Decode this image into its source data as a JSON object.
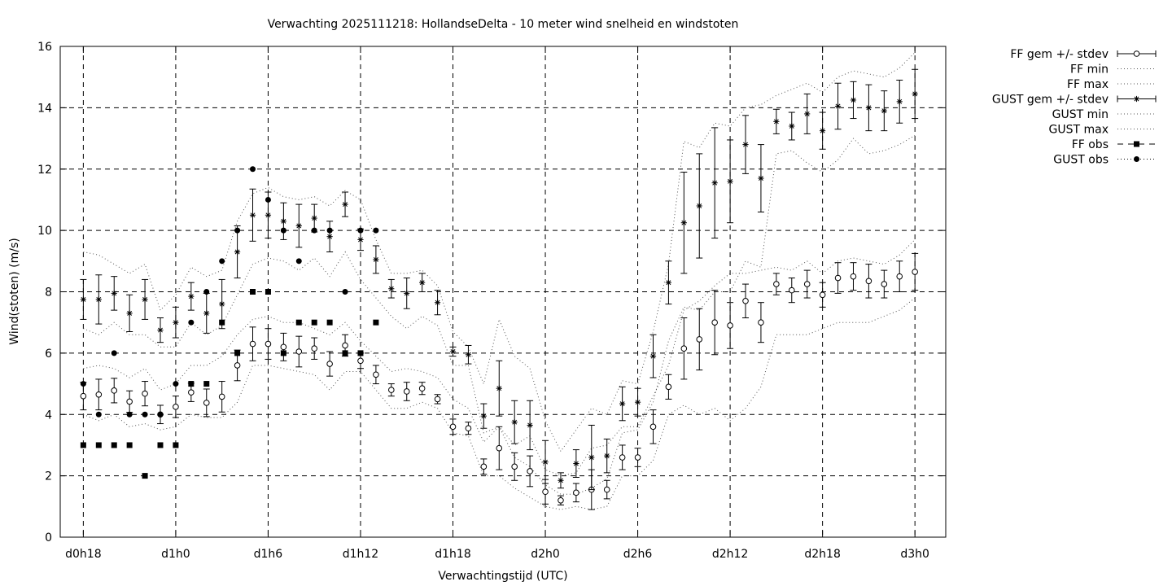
{
  "chart_data": {
    "type": "line",
    "title": "Verwachting 2025111218: HollandseDelta - 10 meter wind snelheid en windstoten",
    "xlabel": "Verwachtingstijd (UTC)",
    "ylabel": "Wind(stoten) (m/s)",
    "ylim": [
      0,
      16
    ],
    "yticks": [
      "0",
      "2",
      "4",
      "6",
      "8",
      "10",
      "12",
      "14",
      "16"
    ],
    "xlim": [
      -1.5,
      56
    ],
    "xticks": [
      {
        "x": 0,
        "label": "d0h18"
      },
      {
        "x": 6,
        "label": "d1h0"
      },
      {
        "x": 12,
        "label": "d1h6"
      },
      {
        "x": 18,
        "label": "d1h12"
      },
      {
        "x": 24,
        "label": "d1h18"
      },
      {
        "x": 30,
        "label": "d2h0"
      },
      {
        "x": 36,
        "label": "d2h6"
      },
      {
        "x": 42,
        "label": "d2h12"
      },
      {
        "x": 48,
        "label": "d2h18"
      },
      {
        "x": 54,
        "label": "d3h0"
      }
    ],
    "grid": true,
    "legend_position": "outside-top-right",
    "series": [
      {
        "name": "FF gem +/- stdev",
        "style": "errorbar-open-circle",
        "x": [
          0,
          1,
          2,
          3,
          4,
          5,
          6,
          7,
          8,
          9,
          10,
          11,
          12,
          13,
          14,
          15,
          16,
          17,
          18,
          19,
          20,
          21,
          22,
          23,
          24,
          25,
          26,
          27,
          28,
          29,
          30,
          31,
          32,
          33,
          34,
          35,
          36,
          37,
          38,
          39,
          40,
          41,
          42,
          43,
          44,
          45,
          46,
          47,
          48,
          49,
          50,
          51,
          52,
          53,
          54
        ],
        "y": [
          4.6,
          4.65,
          4.78,
          4.42,
          4.68,
          4.0,
          4.25,
          4.72,
          4.38,
          4.58,
          5.6,
          6.3,
          6.3,
          6.2,
          6.05,
          6.15,
          5.65,
          6.25,
          5.75,
          5.3,
          4.8,
          4.75,
          4.85,
          4.5,
          3.6,
          3.55,
          2.3,
          2.9,
          2.3,
          2.15,
          1.48,
          1.2,
          1.45,
          1.55,
          1.55,
          2.6,
          2.6,
          3.6,
          4.9,
          6.15,
          6.45,
          7.0,
          6.9,
          7.7,
          7.0,
          8.25,
          8.05,
          8.25,
          7.9,
          8.45,
          8.5,
          8.35,
          8.25,
          8.5,
          8.65
        ],
        "err": [
          0.45,
          0.5,
          0.4,
          0.35,
          0.4,
          0.3,
          0.35,
          0.3,
          0.45,
          0.5,
          0.5,
          0.55,
          0.5,
          0.45,
          0.5,
          0.35,
          0.4,
          0.35,
          0.25,
          0.3,
          0.2,
          0.3,
          0.2,
          0.15,
          0.25,
          0.2,
          0.25,
          0.7,
          0.45,
          0.5,
          0.4,
          0.15,
          0.3,
          0.65,
          0.3,
          0.4,
          0.3,
          0.55,
          0.4,
          1.0,
          1.0,
          1.05,
          0.75,
          0.55,
          0.65,
          0.35,
          0.4,
          0.45,
          0.4,
          0.5,
          0.45,
          0.55,
          0.45,
          0.5,
          0.6
        ]
      },
      {
        "name": "FF min",
        "style": "dotted",
        "x": [
          0,
          1,
          2,
          3,
          4,
          5,
          6,
          7,
          8,
          9,
          10,
          11,
          12,
          13,
          14,
          15,
          16,
          17,
          18,
          19,
          20,
          21,
          22,
          23,
          24,
          25,
          26,
          27,
          28,
          29,
          30,
          31,
          32,
          33,
          34,
          35,
          36,
          37,
          38,
          39,
          40,
          41,
          42,
          43,
          44,
          45,
          46,
          47,
          48,
          49,
          50,
          51,
          52,
          53,
          54
        ],
        "y": [
          4.0,
          3.8,
          4.0,
          3.6,
          3.7,
          3.5,
          3.6,
          4.0,
          3.9,
          3.9,
          4.4,
          5.6,
          5.6,
          5.5,
          5.4,
          5.3,
          4.8,
          5.4,
          5.4,
          4.8,
          4.2,
          4.2,
          4.4,
          4.2,
          3.4,
          3.3,
          2.0,
          2.0,
          1.6,
          1.3,
          1.0,
          0.9,
          1.0,
          0.9,
          1.0,
          2.0,
          2.0,
          2.5,
          4.0,
          4.3,
          4.0,
          4.2,
          3.8,
          4.2,
          4.9,
          6.6,
          6.6,
          6.6,
          6.8,
          7.0,
          7.0,
          7.0,
          7.2,
          7.4,
          7.8
        ]
      },
      {
        "name": "FF max",
        "style": "dotted",
        "x": [
          0,
          1,
          2,
          3,
          4,
          5,
          6,
          7,
          8,
          9,
          10,
          11,
          12,
          13,
          14,
          15,
          16,
          17,
          18,
          19,
          20,
          21,
          22,
          23,
          24,
          25,
          26,
          27,
          28,
          29,
          30,
          31,
          32,
          33,
          34,
          35,
          36,
          37,
          38,
          39,
          40,
          41,
          42,
          43,
          44,
          45,
          46,
          47,
          48,
          49,
          50,
          51,
          52,
          53,
          54
        ],
        "y": [
          5.5,
          5.6,
          5.5,
          5.2,
          5.5,
          4.8,
          5.0,
          5.6,
          5.6,
          5.9,
          6.6,
          7.1,
          7.2,
          7.0,
          7.0,
          6.8,
          6.6,
          7.0,
          6.4,
          5.9,
          5.4,
          5.5,
          5.4,
          5.2,
          4.5,
          4.2,
          3.1,
          3.6,
          3.0,
          3.3,
          2.2,
          2.0,
          2.1,
          2.9,
          3.0,
          3.6,
          3.6,
          4.6,
          5.6,
          7.4,
          7.7,
          8.2,
          8.6,
          8.6,
          8.7,
          8.8,
          8.7,
          9.0,
          8.6,
          9.0,
          9.1,
          9.0,
          8.9,
          9.2,
          9.7
        ]
      },
      {
        "name": "GUST gem +/- stdev",
        "style": "errorbar-star",
        "x": [
          0,
          1,
          2,
          3,
          4,
          5,
          6,
          7,
          8,
          9,
          10,
          11,
          12,
          13,
          14,
          15,
          16,
          17,
          18,
          19,
          20,
          21,
          22,
          23,
          24,
          25,
          26,
          27,
          28,
          29,
          30,
          31,
          32,
          33,
          34,
          35,
          36,
          37,
          38,
          39,
          40,
          41,
          42,
          43,
          44,
          45,
          46,
          47,
          48,
          49,
          50,
          51,
          52,
          53,
          54
        ],
        "y": [
          7.75,
          7.75,
          7.95,
          7.3,
          7.75,
          6.75,
          7.0,
          7.85,
          7.3,
          7.6,
          9.3,
          10.5,
          10.5,
          10.3,
          10.15,
          10.4,
          9.8,
          10.85,
          9.7,
          9.05,
          8.1,
          7.95,
          8.3,
          7.65,
          6.05,
          5.95,
          3.95,
          4.85,
          3.75,
          3.65,
          2.45,
          1.85,
          2.4,
          2.6,
          2.65,
          4.35,
          4.4,
          5.9,
          8.3,
          10.25,
          10.8,
          11.55,
          11.6,
          12.8,
          11.7,
          13.55,
          13.4,
          13.8,
          13.25,
          14.05,
          14.25,
          14.0,
          13.9,
          14.2,
          14.45
        ],
        "err": [
          0.65,
          0.8,
          0.55,
          0.6,
          0.65,
          0.4,
          0.5,
          0.45,
          0.65,
          0.8,
          0.85,
          0.85,
          0.75,
          0.6,
          0.7,
          0.45,
          0.5,
          0.4,
          0.35,
          0.45,
          0.3,
          0.5,
          0.3,
          0.4,
          0.15,
          0.3,
          0.4,
          0.9,
          0.7,
          0.8,
          0.7,
          0.25,
          0.45,
          1.05,
          0.55,
          0.55,
          0.45,
          0.7,
          0.7,
          1.65,
          1.7,
          1.8,
          1.35,
          0.95,
          1.1,
          0.4,
          0.45,
          0.65,
          0.6,
          0.75,
          0.6,
          0.75,
          0.65,
          0.7,
          0.8
        ]
      },
      {
        "name": "GUST min",
        "style": "dotted",
        "x": [
          0,
          1,
          2,
          3,
          4,
          5,
          6,
          7,
          8,
          9,
          10,
          11,
          12,
          13,
          14,
          15,
          16,
          17,
          18,
          19,
          20,
          21,
          22,
          23,
          24,
          25,
          26,
          27,
          28,
          29,
          30,
          31,
          32,
          33,
          34,
          35,
          36,
          37,
          38,
          39,
          40,
          41,
          42,
          43,
          44,
          45,
          46,
          47,
          48,
          49,
          50,
          51,
          52,
          53,
          54
        ],
        "y": [
          6.8,
          6.6,
          7.0,
          6.6,
          6.6,
          6.2,
          6.2,
          7.0,
          6.6,
          6.9,
          7.9,
          8.9,
          9.1,
          9.0,
          8.7,
          9.1,
          8.5,
          9.3,
          8.4,
          7.8,
          7.2,
          6.8,
          7.2,
          6.9,
          5.6,
          5.6,
          3.4,
          3.6,
          2.6,
          2.3,
          1.7,
          1.4,
          1.4,
          1.6,
          1.9,
          3.4,
          3.5,
          4.4,
          6.4,
          7.5,
          7.4,
          8.0,
          8.0,
          9.0,
          8.8,
          12.5,
          12.6,
          12.2,
          11.9,
          12.3,
          13.0,
          12.5,
          12.6,
          12.8,
          13.1
        ]
      },
      {
        "name": "GUST max",
        "style": "dotted",
        "x": [
          0,
          1,
          2,
          3,
          4,
          5,
          6,
          7,
          8,
          9,
          10,
          11,
          12,
          13,
          14,
          15,
          16,
          17,
          18,
          19,
          20,
          21,
          22,
          23,
          24,
          25,
          26,
          27,
          28,
          29,
          30,
          31,
          32,
          33,
          34,
          35,
          36,
          37,
          38,
          39,
          40,
          41,
          42,
          43,
          44,
          45,
          46,
          47,
          48,
          49,
          50,
          51,
          52,
          53,
          54
        ],
        "y": [
          9.3,
          9.2,
          8.9,
          8.6,
          8.9,
          7.4,
          7.9,
          8.8,
          8.5,
          8.7,
          10.3,
          11.2,
          11.4,
          11.1,
          11.0,
          11.1,
          10.8,
          11.3,
          11.0,
          9.7,
          8.6,
          8.6,
          8.7,
          8.2,
          6.7,
          6.2,
          5.0,
          7.1,
          5.9,
          5.5,
          3.8,
          2.8,
          3.5,
          4.2,
          4.0,
          5.1,
          5.0,
          6.7,
          8.9,
          12.9,
          12.7,
          13.5,
          13.4,
          14.0,
          14.1,
          14.4,
          14.6,
          14.8,
          14.5,
          15.0,
          15.2,
          15.1,
          15.0,
          15.3,
          15.8
        ]
      }
    ],
    "observations": [
      {
        "name": "FF obs",
        "style": "dashed-square",
        "x": [
          0,
          1,
          2,
          3,
          4,
          5,
          6,
          7,
          8,
          9,
          10,
          11,
          12,
          13,
          14,
          15,
          16,
          17,
          18,
          19
        ],
        "y": [
          3,
          3,
          3,
          3,
          2,
          3,
          3,
          5,
          5,
          7,
          6,
          8,
          8,
          6,
          7,
          7,
          7,
          6,
          6,
          7
        ]
      },
      {
        "name": "GUST obs",
        "style": "dotted-circle",
        "x": [
          0,
          1,
          2,
          3,
          4,
          5,
          6,
          7,
          8,
          9,
          10,
          11,
          12,
          13,
          14,
          15,
          16,
          17,
          18,
          19
        ],
        "y": [
          5,
          4,
          6,
          4,
          4,
          4,
          5,
          7,
          8,
          9,
          10,
          12,
          11,
          10,
          9,
          10,
          10,
          8,
          10,
          10
        ]
      }
    ]
  }
}
